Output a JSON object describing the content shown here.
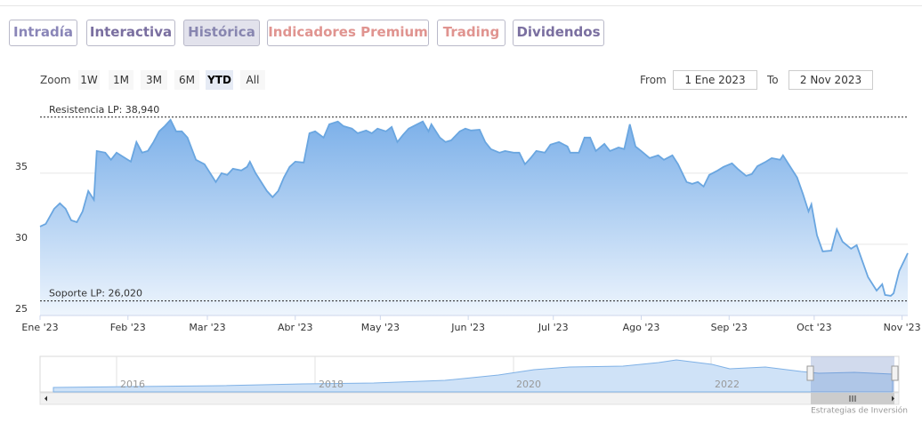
{
  "tabs": [
    "Intradía",
    "Interactiva",
    "Histórica",
    "Indicadores Premium",
    "Trading",
    "Dividendos"
  ],
  "zoom": {
    "label": "Zoom",
    "buttons": [
      {
        "label": "1W",
        "selected": false
      },
      {
        "label": "1M",
        "selected": false
      },
      {
        "label": "3M",
        "selected": false
      },
      {
        "label": "6M",
        "selected": false
      },
      {
        "label": "YTD",
        "selected": true
      },
      {
        "label": "All",
        "selected": false
      }
    ]
  },
  "range": {
    "from_label": "From",
    "from": "1 Ene 2023",
    "to_label": "To",
    "to": "2 Nov 2023"
  },
  "chart_data": {
    "type": "area",
    "color": "#6aa6e0",
    "x": [
      0,
      2,
      5,
      7,
      9,
      11,
      13,
      15,
      17,
      19,
      20,
      23,
      25,
      27,
      30,
      32,
      34,
      36,
      38,
      40,
      42,
      44,
      46,
      48,
      50,
      52,
      55,
      58,
      60,
      62,
      64,
      66,
      68,
      71,
      73,
      74,
      76,
      79,
      80,
      82,
      84,
      86,
      88,
      90,
      93,
      95,
      97,
      100,
      102,
      105,
      107,
      110,
      112,
      115,
      117,
      119,
      122,
      124,
      126,
      128,
      130,
      133,
      135,
      137,
      138,
      141,
      143,
      145,
      148,
      150,
      152,
      155,
      157,
      159,
      162,
      164,
      167,
      169,
      171,
      173,
      175,
      178,
      180,
      183,
      186,
      187,
      190,
      192,
      194,
      196,
      199,
      201,
      204,
      206,
      208,
      210,
      212,
      215,
      218,
      220,
      223,
      225,
      228,
      230,
      232,
      234,
      236,
      239,
      241,
      244,
      246,
      249,
      251,
      253,
      256,
      258,
      261,
      262,
      265,
      267,
      269,
      271,
      272,
      274,
      276,
      279,
      281,
      283,
      286,
      288,
      292,
      295,
      297,
      298,
      300,
      301,
      303,
      306
    ],
    "values": [
      31.25,
      31.44,
      32.5,
      32.88,
      32.5,
      31.69,
      31.56,
      32.31,
      33.75,
      33.13,
      36.56,
      36.44,
      35.94,
      36.44,
      36.06,
      35.81,
      37.19,
      36.44,
      36.56,
      37.19,
      37.94,
      38.31,
      38.75,
      37.94,
      37.94,
      37.5,
      35.94,
      35.63,
      35.0,
      34.38,
      35.0,
      34.88,
      35.31,
      35.19,
      35.44,
      35.81,
      35.0,
      34.06,
      33.75,
      33.31,
      33.75,
      34.69,
      35.44,
      35.81,
      35.75,
      37.81,
      37.94,
      37.5,
      38.44,
      38.63,
      38.31,
      38.13,
      37.81,
      38.0,
      37.81,
      38.13,
      37.94,
      38.25,
      37.19,
      37.69,
      38.13,
      38.44,
      38.63,
      37.94,
      38.44,
      37.5,
      37.19,
      37.31,
      37.94,
      38.13,
      38.0,
      38.06,
      37.19,
      36.69,
      36.44,
      36.56,
      36.44,
      36.44,
      35.63,
      36.06,
      36.56,
      36.44,
      37.0,
      37.19,
      36.88,
      36.44,
      36.44,
      37.5,
      37.5,
      36.56,
      37.06,
      36.56,
      36.81,
      36.69,
      38.44,
      36.88,
      36.56,
      36.06,
      36.25,
      35.94,
      36.25,
      35.63,
      34.38,
      34.25,
      34.38,
      34.06,
      34.88,
      35.19,
      35.44,
      35.69,
      35.31,
      34.81,
      34.94,
      35.5,
      35.81,
      36.06,
      35.94,
      36.25,
      35.31,
      34.69,
      33.56,
      32.31,
      32.81,
      30.63,
      29.5,
      29.56,
      31.06,
      30.19,
      29.69,
      29.94,
      27.69,
      26.75,
      27.19,
      26.44,
      26.38,
      26.56,
      28.13,
      29.38
    ],
    "xlim": [
      0,
      306
    ],
    "xticks": [
      {
        "value": 0,
        "label": "Ene '23"
      },
      {
        "value": 31,
        "label": "Feb '23"
      },
      {
        "value": 59,
        "label": "Mar '23"
      },
      {
        "value": 90,
        "label": "Abr '23"
      },
      {
        "value": 120,
        "label": "May '23"
      },
      {
        "value": 151,
        "label": "Jun '23"
      },
      {
        "value": 181,
        "label": "Jul '23"
      },
      {
        "value": 212,
        "label": "Ago '23"
      },
      {
        "value": 243,
        "label": "Sep '23"
      },
      {
        "value": 273,
        "label": "Oct '23"
      },
      {
        "value": 304,
        "label": "Nov '23"
      }
    ],
    "ylim": [
      25,
      39.8
    ],
    "yticks": [
      25,
      30,
      35
    ],
    "grid": true,
    "annotations": [
      {
        "label": "Resistencia LP: 38,940",
        "value": 38.94
      },
      {
        "label": "Soporte LP: 26,020",
        "value": 26.02
      }
    ]
  },
  "navigator": {
    "labels": [
      "2016",
      "2018",
      "2020",
      "2022"
    ]
  },
  "credit": "Estrategias de Inversión"
}
